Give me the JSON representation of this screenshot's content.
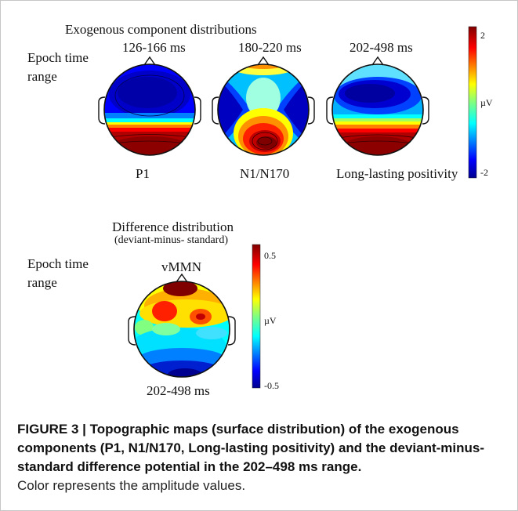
{
  "figure": {
    "top_section": {
      "title": "Exogenous component distributions",
      "row_label_line1": "Epoch time",
      "row_label_line2": "range",
      "maps": [
        {
          "time": "126-166 ms",
          "component": "P1"
        },
        {
          "time": "180-220 ms",
          "component": "N1/N170"
        },
        {
          "time": "202-498 ms",
          "component": "Long-lasting positivity"
        }
      ],
      "colorbar": {
        "max_label": "2",
        "min_label": "-2",
        "unit": "µV",
        "range": [
          -2,
          2
        ]
      }
    },
    "bottom_section": {
      "title": "Difference distribution",
      "subtitle": "(deviant-minus- standard)",
      "row_label_line1": "Epoch time",
      "row_label_line2": "range",
      "map": {
        "component": "vMMN",
        "time": "202-498 ms"
      },
      "colorbar": {
        "max_label": "0.5",
        "min_label": "-0.5",
        "unit": "µV",
        "range": [
          -0.5,
          0.5
        ]
      }
    }
  },
  "caption": {
    "bold": "FIGURE 3 | Topographic maps (surface distribution) of the exogenous components (P1, N1/N170, Long-lasting positivity) and the deviant-minus-standard difference potential in the 202–498 ms range.",
    "normal": "Color represents the amplitude values."
  },
  "colors": {
    "scale": [
      "#00008f",
      "#0000ff",
      "#0080ff",
      "#00ffff",
      "#80ff80",
      "#ffff00",
      "#ff8000",
      "#ff0000",
      "#800000"
    ]
  }
}
